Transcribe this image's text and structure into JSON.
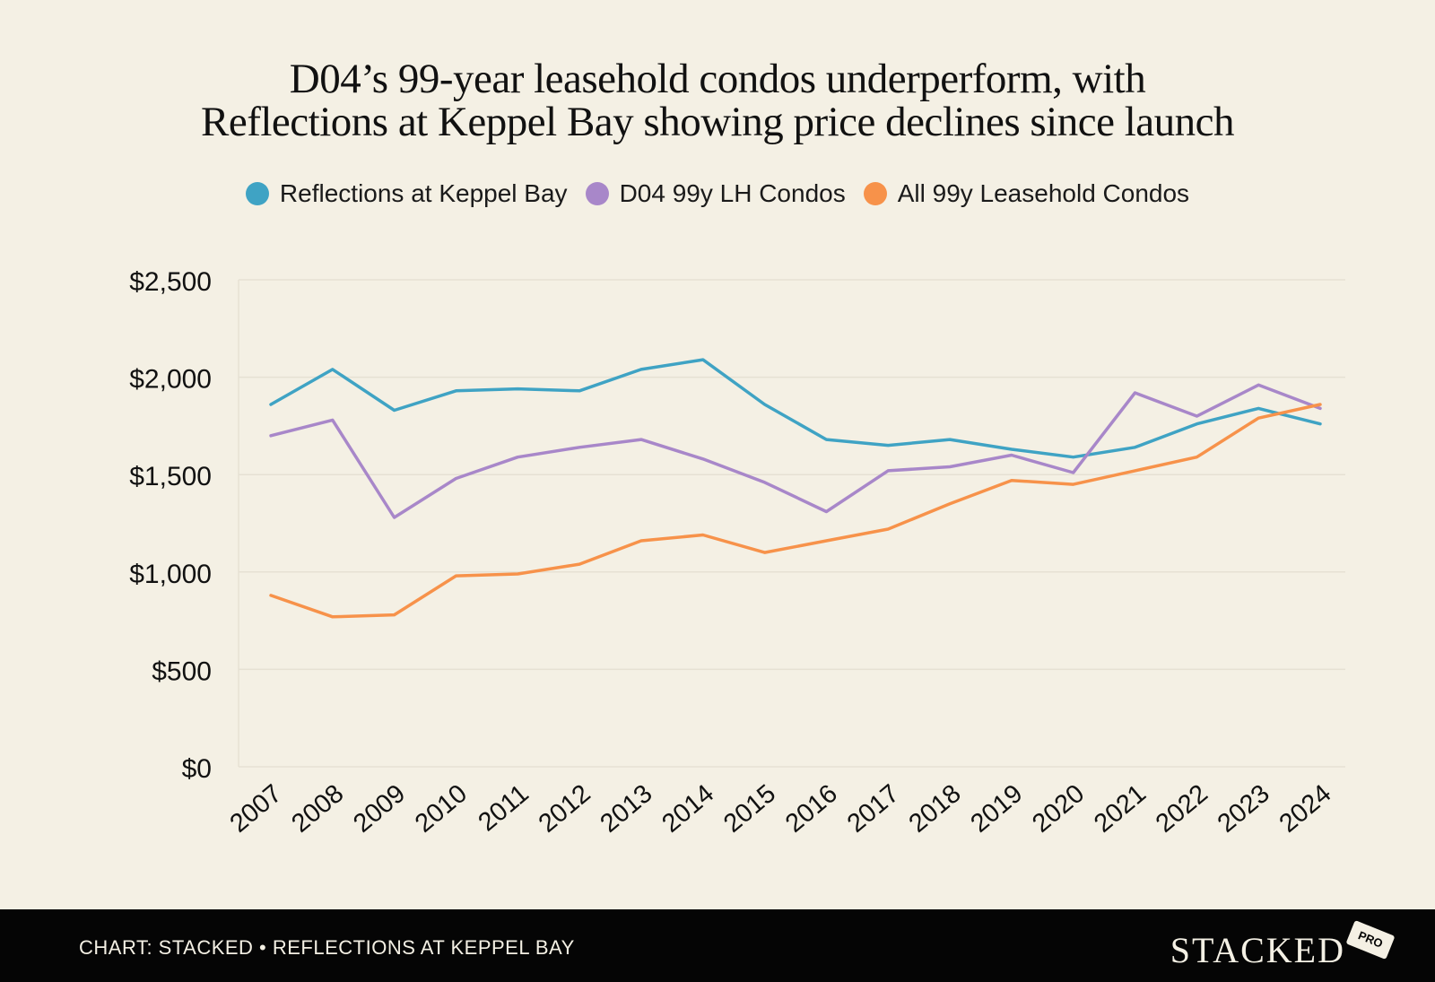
{
  "title": {
    "line1": "D04’s 99-year leasehold condos underperform, with",
    "line2": "Reflections at Keppel Bay showing price declines since launch"
  },
  "colors": {
    "background": "#f4f0e4",
    "grid": "#e6e1d3",
    "footer": "#050505"
  },
  "chart_data": {
    "type": "line",
    "categories": [
      "2007",
      "2008",
      "2009",
      "2010",
      "2011",
      "2012",
      "2013",
      "2014",
      "2015",
      "2016",
      "2017",
      "2018",
      "2019",
      "2020",
      "2021",
      "2022",
      "2023",
      "2024"
    ],
    "series": [
      {
        "name": "Reflections at Keppel Bay",
        "color": "#3fa3c4",
        "values": [
          1860,
          2040,
          1830,
          1930,
          1940,
          1930,
          2040,
          2090,
          1860,
          1680,
          1650,
          1680,
          1630,
          1590,
          1640,
          1760,
          1840,
          1760
        ]
      },
      {
        "name": "D04 99y LH Condos",
        "color": "#a887c9",
        "values": [
          1700,
          1780,
          1280,
          1480,
          1590,
          1640,
          1680,
          1580,
          1460,
          1310,
          1520,
          1540,
          1600,
          1510,
          1920,
          1800,
          1960,
          1840
        ]
      },
      {
        "name": "All 99y Leasehold Condos",
        "color": "#f7924a",
        "values": [
          880,
          770,
          780,
          980,
          990,
          1040,
          1160,
          1190,
          1100,
          1160,
          1220,
          1350,
          1470,
          1450,
          1520,
          1590,
          1790,
          1860
        ]
      }
    ],
    "y_ticks": [
      {
        "value": 0,
        "label": "$0"
      },
      {
        "value": 500,
        "label": "$500"
      },
      {
        "value": 1000,
        "label": "$1,000"
      },
      {
        "value": 1500,
        "label": "$1,500"
      },
      {
        "value": 2000,
        "label": "$2,000"
      },
      {
        "value": 2500,
        "label": "$2,500"
      }
    ],
    "ylim": [
      0,
      2500
    ],
    "grid": true,
    "legend_position": "top-center",
    "xlabel": "",
    "ylabel": ""
  },
  "footer": {
    "source": "CHART: STACKED • REFLECTIONS AT KEPPEL BAY",
    "brand": "STACKED",
    "brand_tag": "PRO"
  }
}
